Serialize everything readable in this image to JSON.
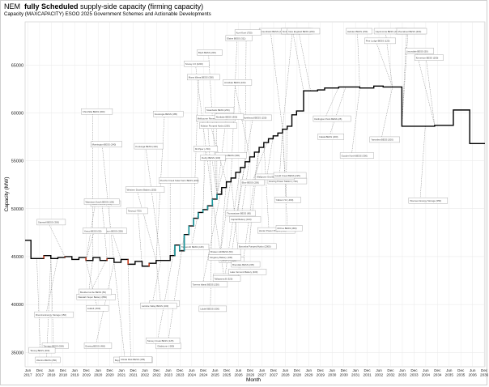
{
  "title": {
    "prefix": "NEM",
    "bold": "fully Scheduled",
    "suffix": "supply-side capacity (firming capacity)"
  },
  "subtitle": "Capacity (MAXCAPACITY) ESOO 2025 Government Schemes and Actionable Developments",
  "colors": {
    "main_line": "#000000",
    "teal_segments": "#1a9aa0",
    "red_segments": "#d04020",
    "grid": "#e6e6e6",
    "leader": "#666666"
  },
  "chart_data": {
    "type": "line",
    "title": "NEM fully Scheduled supply-side capacity (firming capacity)",
    "subtitle": "Capacity (MAXCAPACITY) ESOO 2025 Government Schemes and Actionable Developments",
    "xlabel": "Month",
    "ylabel": "Capacity (MW)",
    "ylim": [
      33500,
      69500
    ],
    "xlim": [
      2017.3,
      2036.95
    ],
    "yticks": [
      35000,
      40000,
      45000,
      50000,
      55000,
      60000,
      65000
    ],
    "ytick_labels": [
      "35000",
      "40000",
      "45000",
      "50000",
      "55000",
      "60000",
      "65000"
    ],
    "xticks": [
      {
        "m": "Jun",
        "y": "2017",
        "t": 2017.42
      },
      {
        "m": "Dec",
        "y": "2017",
        "t": 2017.92
      },
      {
        "m": "Jun",
        "y": "2018",
        "t": 2018.42
      },
      {
        "m": "Dec",
        "y": "2018",
        "t": 2018.92
      },
      {
        "m": "Jun",
        "y": "2019",
        "t": 2019.42
      },
      {
        "m": "Dec",
        "y": "2019",
        "t": 2019.92
      },
      {
        "m": "Jun",
        "y": "2020",
        "t": 2020.42
      },
      {
        "m": "Dec",
        "y": "2020",
        "t": 2020.92
      },
      {
        "m": "Jun",
        "y": "2021",
        "t": 2021.42
      },
      {
        "m": "Dec",
        "y": "2021",
        "t": 2021.92
      },
      {
        "m": "Jun",
        "y": "2022",
        "t": 2022.42
      },
      {
        "m": "Dec",
        "y": "2022",
        "t": 2022.92
      },
      {
        "m": "Jun",
        "y": "2023",
        "t": 2023.42
      },
      {
        "m": "Dec",
        "y": "2023",
        "t": 2023.92
      },
      {
        "m": "Jun",
        "y": "2024",
        "t": 2024.42
      },
      {
        "m": "Dec",
        "y": "2024",
        "t": 2024.92
      },
      {
        "m": "Jun",
        "y": "2025",
        "t": 2025.42
      },
      {
        "m": "Dec",
        "y": "2025",
        "t": 2025.92
      },
      {
        "m": "Jun",
        "y": "2026",
        "t": 2026.42
      },
      {
        "m": "Dec",
        "y": "2026",
        "t": 2026.92
      },
      {
        "m": "Jun",
        "y": "2027",
        "t": 2027.42
      },
      {
        "m": "Dec",
        "y": "2027",
        "t": 2027.92
      },
      {
        "m": "Jun",
        "y": "2028",
        "t": 2028.42
      },
      {
        "m": "Dec",
        "y": "2028",
        "t": 2028.92
      },
      {
        "m": "Jun",
        "y": "2029",
        "t": 2029.42
      },
      {
        "m": "Dec",
        "y": "2029",
        "t": 2029.92
      },
      {
        "m": "Jun",
        "y": "2030",
        "t": 2030.42
      },
      {
        "m": "Dec",
        "y": "2030",
        "t": 2030.92
      },
      {
        "m": "Jun",
        "y": "2031",
        "t": 2031.42
      },
      {
        "m": "Dec",
        "y": "2031",
        "t": 2031.92
      },
      {
        "m": "Jun",
        "y": "2032",
        "t": 2032.42
      },
      {
        "m": "Dec",
        "y": "2032",
        "t": 2032.92
      },
      {
        "m": "Jun",
        "y": "2033",
        "t": 2033.42
      },
      {
        "m": "Dec",
        "y": "2033",
        "t": 2033.92
      },
      {
        "m": "Jun",
        "y": "2034",
        "t": 2034.42
      },
      {
        "m": "Dec",
        "y": "2034",
        "t": 2034.92
      },
      {
        "m": "Jun",
        "y": "2035",
        "t": 2035.42
      },
      {
        "m": "Dec",
        "y": "2035",
        "t": 2035.92
      },
      {
        "m": "Jun",
        "y": "2036",
        "t": 2036.42
      },
      {
        "m": "Dec",
        "y": "2036",
        "t": 2036.92
      }
    ],
    "grid": true,
    "series": [
      {
        "style": "step",
        "x": [
          2017.3,
          2017.45,
          2017.55,
          2017.8,
          2018.1,
          2018.4,
          2018.7,
          2019.0,
          2019.3,
          2019.6,
          2019.9,
          2020.2,
          2020.5,
          2020.8,
          2021.1,
          2021.4,
          2021.7,
          2022.0,
          2022.3,
          2022.6,
          2022.9,
          2023.1,
          2023.3,
          2023.5,
          2023.7,
          2023.9,
          2024.1,
          2024.3,
          2024.5,
          2024.7,
          2024.9,
          2025.1,
          2025.3,
          2025.5,
          2025.7,
          2025.9,
          2026.1,
          2026.3,
          2026.5,
          2026.7,
          2026.9,
          2027.1,
          2027.3,
          2027.5,
          2027.7,
          2027.9,
          2028.1,
          2028.3,
          2028.5,
          2028.7,
          2028.9,
          2029.2,
          2029.5,
          2029.8,
          2030.1,
          2030.4,
          2030.7,
          2031.0,
          2031.3,
          2031.6,
          2031.9,
          2032.2,
          2032.6,
          2033.0,
          2033.3,
          2033.4,
          2033.8,
          2034.4,
          2034.8,
          2035.3,
          2035.6,
          2035.9,
          2036.3,
          2036.6,
          2036.95
        ],
        "values": [
          46700,
          46700,
          44800,
          44800,
          45100,
          44800,
          44900,
          45000,
          44700,
          44900,
          44600,
          44900,
          44600,
          44800,
          44400,
          44700,
          44200,
          44500,
          44000,
          44300,
          44600,
          44600,
          44600,
          45100,
          46200,
          45600,
          47300,
          48200,
          49000,
          49600,
          49900,
          50300,
          51000,
          51500,
          52200,
          52800,
          53200,
          53800,
          54300,
          54900,
          55400,
          55900,
          56400,
          56900,
          57300,
          57600,
          57900,
          58300,
          58600,
          59800,
          60200,
          62300,
          62300,
          62400,
          62600,
          62600,
          62700,
          62700,
          62700,
          62600,
          62600,
          62800,
          62700,
          62700,
          62700,
          58600,
          58600,
          58600,
          58700,
          58700,
          60300,
          60300,
          56800,
          56800,
          56800
        ]
      }
    ],
    "annotations": [
      "Kidston Pumped Hydro (250)",
      "Snowy 2.0 (2200)",
      "Borumba Pumped Hydro (2000)",
      "Eraring Power Station (-720)",
      "Yallourn W (-360)",
      "Bayswater Power Station (-685)",
      "Liddell (-500)",
      "Mt Piper (-700)",
      "Vales Point B (-660)",
      "Callide B (-350)",
      "Gladstone (-280)",
      "Tarong (-700)",
      "Hunter Power Project (750)",
      "Waratah Super Battery (850)",
      "Tomago BESS (500)",
      "Wooreen Energy Storage (350)",
      "Melbourne Renewable Energy Hub (600)",
      "Supernode BESS (750)",
      "Koorangie BESS (185)",
      "Rangebank BESS (200)",
      "Capital Battery (100)",
      "Ulinda Park BESS (155)",
      "Western Downs Battery (255)",
      "Brendale BESS (205)",
      "Swanbank BESS (250)",
      "Wandoan South BESS (100)",
      "Tarong BESS (300)",
      "Greenbank BESS (200)",
      "Bouldercombe BESS (50)",
      "Hazelwood BESS (150)",
      "Broken Hill BESS (50)",
      "Riverina Energy Storage (150)",
      "Darlington Point BESS (25)",
      "Wallgrove Grid Battery (50)",
      "Torrens Island BESS (250)",
      "Blyth BESS (200)",
      "Bungala Battery (100)",
      "Stanwell BESS (300)",
      "Eraring BESS (460)",
      "Liddell BESS (500)",
      "Orana BESS (415)",
      "Smithfield BESS (65)",
      "Mortlake BESS (300)",
      "Elaine BESS (311)",
      "Kurri Kurri (750)",
      "Tallawarra B (320)",
      "Mt Fox BESS (300)",
      "Lake Vermont Battery (400)",
      "Wambo BESS (250)",
      "Gould Creek BESS (225)",
      "Mannum BESS (250)",
      "Limondale BESS (50)",
      "Mornington BESS (240)",
      "Punchs Creek Solar Farm BESS (200)",
      "Goyder North BESS (300)",
      "Pine Lodge BESS (125)",
      "Kingaroy Battery (100)",
      "Stoney Creek BESS (125)",
      "Wellington BESS (300)",
      "Tamworth BESS (125)",
      "Yanco BESS (50)",
      "Thomastown BESS (80)",
      "New England BESS (200)",
      "Capricornia BESS (300)",
      "Calala BESS (200)",
      "Chinchilla BESS (300)",
      "Latrobe Valley BESS (100)",
      "Moorabool BESS (300)",
      "Koolunga BESS (100)",
      "Kemerton BESS (200)",
      "Armidale BESS (100)",
      "Hebden BESS (150)",
      "Ebor BESS (200)",
      "Murra Warra BESS (350)",
      "Derby BESS (100)",
      "Yarranlea BESS (200)"
    ]
  }
}
